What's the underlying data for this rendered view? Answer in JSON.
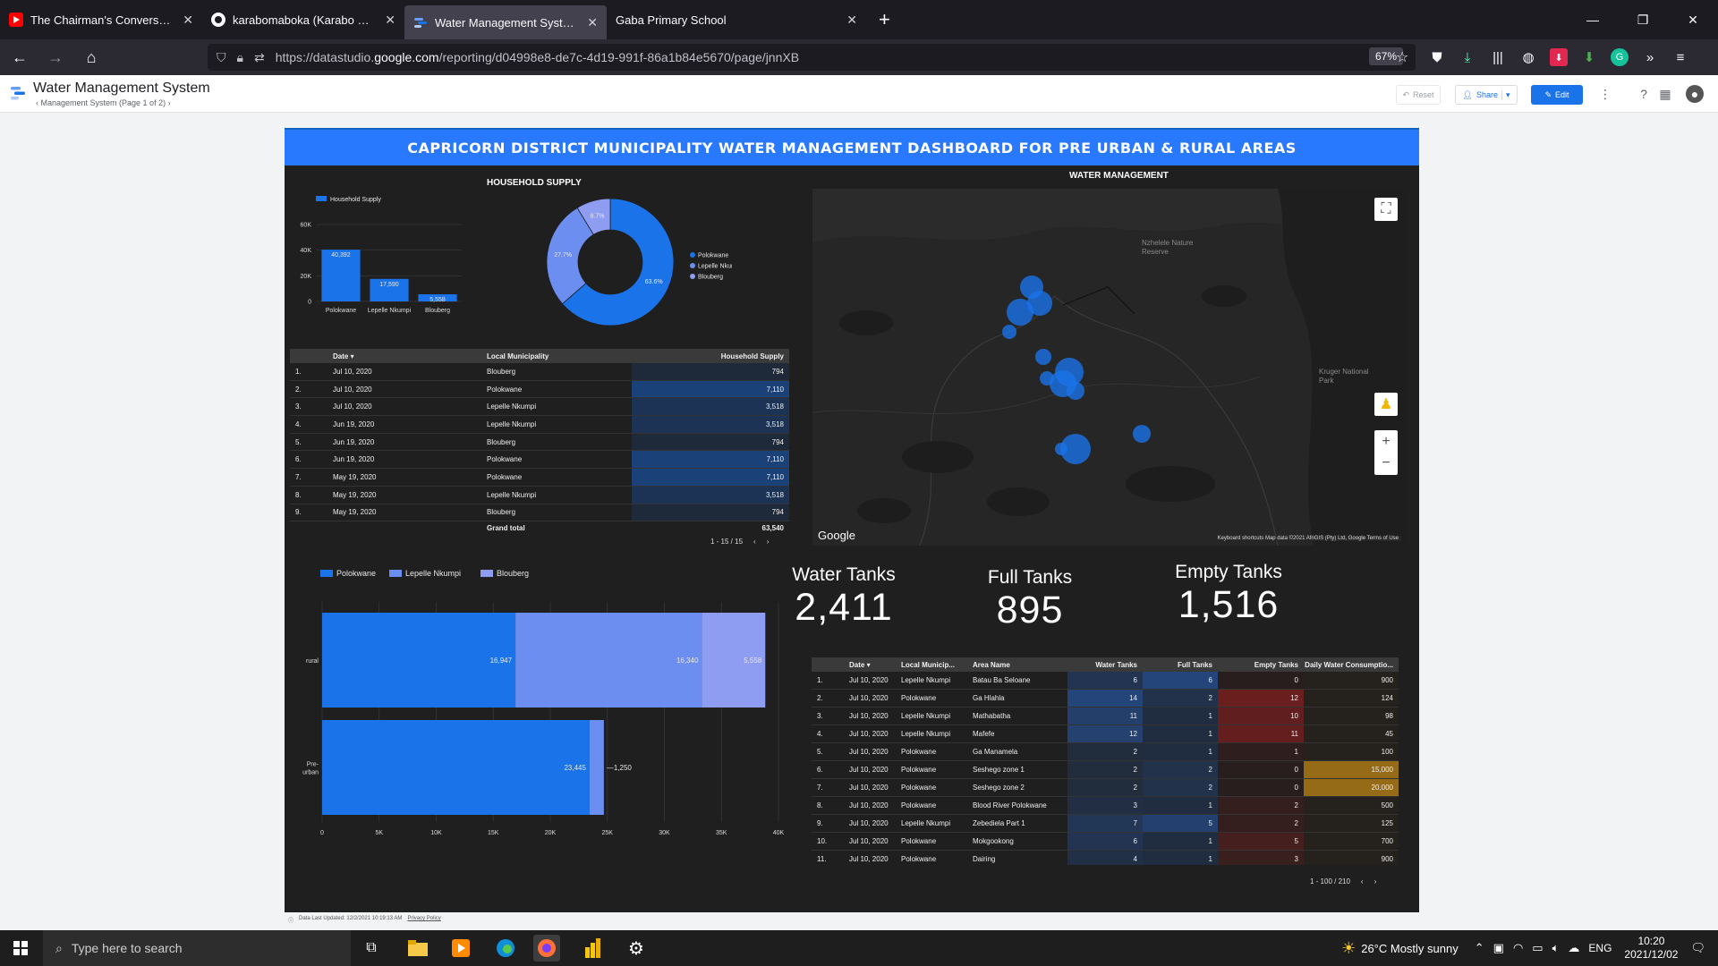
{
  "browser": {
    "tabs": [
      {
        "title": "The Chairman's Conversation w",
        "icon": "youtube-icon",
        "active": false
      },
      {
        "title": "karabomaboka (Karabo Mabok",
        "icon": "github-icon",
        "active": false
      },
      {
        "title": "Water Management System - M",
        "icon": "data-studio-icon",
        "active": true
      },
      {
        "title": "Gaba Primary School",
        "icon": "blank-page-icon",
        "active": false
      }
    ],
    "url_prefix": "https://datastudio.",
    "url_domain": "google.com",
    "url_path": "/reporting/d04998e8-de7c-4d19-991f-86a1b84e5670/page/jnnXB",
    "zoom": "67%"
  },
  "report": {
    "title": "Water Management System",
    "page_nav": "Management System (Page 1 of 2)",
    "reset_label": "Reset",
    "share_label": "Share",
    "edit_label": "Edit",
    "footer_updated": "Data Last Updated: 12/2/2021 10:19:13 AM",
    "footer_privacy": "Privacy Policy"
  },
  "dashboard": {
    "banner": "CAPRICORN DISTRICT MUNICIPALITY WATER MANAGEMENT DASHBOARD FOR PRE URBAN & RURAL AREAS",
    "household_title": "HOUSEHOLD SUPPLY",
    "water_title": "WATER MANAGEMENT",
    "colors": {
      "primary": "#1a73e8",
      "secondary": "#6c8ef0",
      "tertiary": "#8e9cf2",
      "banner": "#2979ff"
    },
    "map": {
      "labels": [
        "Nzhelele Nature Reserve",
        "Kruger National Park"
      ],
      "google": "Google",
      "attribution": "Keyboard shortcuts   Map data ©2021 AfriGIS (Pty) Ltd, Google   Terms of Use"
    },
    "kpis": [
      {
        "label": "Water Tanks",
        "value": "2,411"
      },
      {
        "label": "Full Tanks",
        "value": "895"
      },
      {
        "label": "Empty Tanks",
        "value": "1,516"
      }
    ],
    "household_table": {
      "headers": [
        "Date",
        "Local Municipality",
        "Household Supply"
      ],
      "rows": [
        [
          "1.",
          "Jul 10, 2020",
          "Blouberg",
          "794"
        ],
        [
          "2.",
          "Jul 10, 2020",
          "Polokwane",
          "7,110"
        ],
        [
          "3.",
          "Jul 10, 2020",
          "Lepelle Nkumpi",
          "3,518"
        ],
        [
          "4.",
          "Jun 19, 2020",
          "Lepelle Nkumpi",
          "3,518"
        ],
        [
          "5.",
          "Jun 19, 2020",
          "Blouberg",
          "794"
        ],
        [
          "6.",
          "Jun 19, 2020",
          "Polokwane",
          "7,110"
        ],
        [
          "7.",
          "May 19, 2020",
          "Polokwane",
          "7,110"
        ],
        [
          "8.",
          "May 19, 2020",
          "Lepelle Nkumpi",
          "3,518"
        ],
        [
          "9.",
          "May 19, 2020",
          "Blouberg",
          "794"
        ]
      ],
      "total_label": "Grand total",
      "total_value": "63,540",
      "pager": "1 - 15 / 15"
    },
    "tank_table": {
      "headers": [
        "Date",
        "Local Municip...",
        "Area Name",
        "Water Tanks",
        "Full Tanks",
        "Empty Tanks",
        "Daily Water Consumptio..."
      ],
      "rows": [
        [
          "1.",
          "Jul 10, 2020",
          "Lepelle Nkumpi",
          "Batau Ba Seloane",
          "6",
          "6",
          "0",
          "900"
        ],
        [
          "2.",
          "Jul 10, 2020",
          "Polokwane",
          "Ga Hlahla",
          "14",
          "2",
          "12",
          "124"
        ],
        [
          "3.",
          "Jul 10, 2020",
          "Lepelle Nkumpi",
          "Mathabatha",
          "11",
          "1",
          "10",
          "98"
        ],
        [
          "4.",
          "Jul 10, 2020",
          "Lepelle Nkumpi",
          "Mafefe",
          "12",
          "1",
          "11",
          "45"
        ],
        [
          "5.",
          "Jul 10, 2020",
          "Polokwane",
          "Ga Manamela",
          "2",
          "1",
          "1",
          "100"
        ],
        [
          "6.",
          "Jul 10, 2020",
          "Polokwane",
          "Seshego zone 1",
          "2",
          "2",
          "0",
          "15,000"
        ],
        [
          "7.",
          "Jul 10, 2020",
          "Polokwane",
          "Seshego zone 2",
          "2",
          "2",
          "0",
          "20,000"
        ],
        [
          "8.",
          "Jul 10, 2020",
          "Polokwane",
          "Blood River Polokwane",
          "3",
          "1",
          "2",
          "500"
        ],
        [
          "9.",
          "Jul 10, 2020",
          "Lepelle Nkumpi",
          "Zebediela Part 1",
          "7",
          "5",
          "2",
          "125"
        ],
        [
          "10.",
          "Jul 10, 2020",
          "Polokwane",
          "Mokgookong",
          "6",
          "1",
          "5",
          "700"
        ],
        [
          "11.",
          "Jul 10, 2020",
          "Polokwane",
          "Dairing",
          "4",
          "1",
          "3",
          "900"
        ]
      ],
      "pager": "1 - 100 / 210"
    }
  },
  "chart_data": [
    {
      "type": "bar",
      "legend": "Household Supply",
      "categories": [
        "Polokwane",
        "Lepelle Nkumpi",
        "Blouberg"
      ],
      "values": [
        40392,
        17590,
        5558
      ],
      "value_labels": [
        "40,392",
        "17,590",
        "5,558"
      ],
      "yticks": [
        "0",
        "20K",
        "40K",
        "60K"
      ],
      "ylim": [
        0,
        60000
      ]
    },
    {
      "type": "pie",
      "categories": [
        "Polokwane",
        "Lepelle Nkumpi",
        "Blouberg"
      ],
      "values": [
        63.6,
        27.7,
        8.7
      ],
      "value_labels": [
        "63.6%",
        "27.7%",
        "8.7%"
      ],
      "donut": true
    },
    {
      "type": "bar",
      "orientation": "horizontal",
      "stacked": true,
      "categories": [
        "rural",
        "Pre-urban"
      ],
      "series": [
        {
          "name": "Polokwane",
          "values": [
            16947,
            23445
          ],
          "labels": [
            "16,947",
            "23,445"
          ]
        },
        {
          "name": "Lepelle Nkumpi",
          "values": [
            16340,
            1250
          ],
          "labels": [
            "16,340",
            "1,250"
          ]
        },
        {
          "name": "Blouberg",
          "values": [
            5558,
            0
          ],
          "labels": [
            "5,558",
            ""
          ]
        }
      ],
      "xticks": [
        "0",
        "5K",
        "10K",
        "15K",
        "20K",
        "25K",
        "30K",
        "35K",
        "40K"
      ],
      "xlim": [
        0,
        40000
      ]
    }
  ],
  "taskbar": {
    "search_placeholder": "Type here to search",
    "weather": "26°C  Mostly sunny",
    "lang": "ENG",
    "time": "10:20",
    "date": "2021/12/02"
  }
}
